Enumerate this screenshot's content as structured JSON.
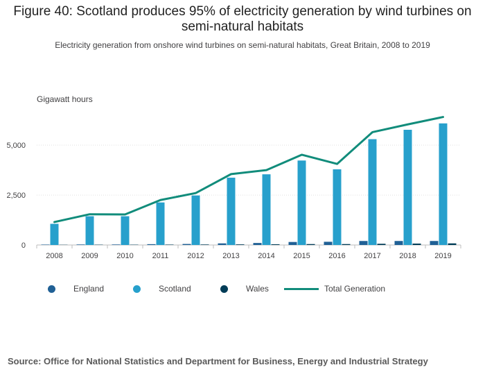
{
  "title": "Figure 40: Scotland produces 95% of electricity generation by wind turbines on semi-natural habitats",
  "subtitle": "Electricity generation from onshore wind turbines on semi-natural habitats, Great Britain, 2008 to 2019",
  "source": "Source: Office for National Statistics and Department for Business, Energy and Industrial Strategy",
  "colors": {
    "england": "#206095",
    "scotland": "#27a0cc",
    "wales": "#003c57",
    "total": "#118c7b",
    "axis": "#bebebe",
    "gridline": "#e0e0e0"
  },
  "chart_data": {
    "type": "bar",
    "ylabel": "Gigawatt hours",
    "ylim": [
      0,
      6500
    ],
    "yticks": [
      0,
      2500,
      5000
    ],
    "ytick_labels": [
      "0",
      "2,500",
      "5,000"
    ],
    "categories": [
      "2008",
      "2009",
      "2010",
      "2011",
      "2012",
      "2013",
      "2014",
      "2015",
      "2016",
      "2017",
      "2018",
      "2019"
    ],
    "series": [
      {
        "name": "England",
        "type": "bar",
        "color_key": "england",
        "values": [
          20,
          25,
          25,
          40,
          50,
          80,
          100,
          150,
          160,
          200,
          200,
          200
        ]
      },
      {
        "name": "Scotland",
        "type": "bar",
        "color_key": "scotland",
        "values": [
          1060,
          1440,
          1440,
          2130,
          2480,
          3370,
          3540,
          4230,
          3790,
          5300,
          5770,
          6090
        ]
      },
      {
        "name": "Wales",
        "type": "bar",
        "color_key": "wales",
        "values": [
          10,
          15,
          15,
          20,
          25,
          30,
          35,
          45,
          45,
          60,
          70,
          80
        ]
      },
      {
        "name": "Total Generation",
        "type": "line",
        "color_key": "total",
        "values": [
          1150,
          1540,
          1530,
          2250,
          2600,
          3550,
          3750,
          4520,
          4060,
          5650,
          6040,
          6410
        ]
      }
    ],
    "legend": [
      "England",
      "Scotland",
      "Wales",
      "Total Generation"
    ],
    "legend_position": "bottom"
  }
}
